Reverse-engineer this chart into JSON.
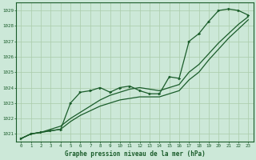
{
  "title": "Graphe pression niveau de la mer (hPa)",
  "bg_color": "#cce8d8",
  "grid_color": "#aaccaa",
  "line_color": "#1a5c2a",
  "xlim": [
    -0.5,
    23.5
  ],
  "ylim": [
    1020.5,
    1029.5
  ],
  "yticks": [
    1021,
    1022,
    1023,
    1024,
    1025,
    1026,
    1027,
    1028,
    1029
  ],
  "xticks": [
    0,
    1,
    2,
    3,
    4,
    5,
    6,
    7,
    8,
    9,
    10,
    11,
    12,
    13,
    14,
    15,
    16,
    17,
    18,
    19,
    20,
    21,
    22,
    23
  ],
  "x": [
    0,
    1,
    2,
    3,
    4,
    5,
    6,
    7,
    8,
    9,
    10,
    11,
    12,
    13,
    14,
    15,
    16,
    17,
    18,
    19,
    20,
    21,
    22,
    23
  ],
  "pressure_main": [
    1020.7,
    1021.0,
    1021.1,
    1021.2,
    1021.3,
    1023.0,
    1023.7,
    1023.8,
    1024.0,
    1023.7,
    1024.0,
    1024.1,
    1023.8,
    1023.6,
    1023.6,
    1024.7,
    1024.6,
    1027.0,
    1027.5,
    1028.3,
    1029.0,
    1029.1,
    1029.0,
    1028.7
  ],
  "pressure_low": [
    1020.7,
    1021.0,
    1021.1,
    1021.2,
    1021.3,
    1021.8,
    1022.2,
    1022.5,
    1022.8,
    1023.0,
    1023.2,
    1023.3,
    1023.4,
    1023.4,
    1023.4,
    1023.6,
    1023.8,
    1024.5,
    1025.0,
    1025.8,
    1026.5,
    1027.2,
    1027.8,
    1028.4
  ],
  "pressure_high": [
    1020.7,
    1021.0,
    1021.1,
    1021.3,
    1021.5,
    1022.0,
    1022.4,
    1022.8,
    1023.2,
    1023.5,
    1023.7,
    1023.9,
    1024.0,
    1023.9,
    1023.8,
    1024.0,
    1024.2,
    1025.0,
    1025.5,
    1026.2,
    1026.9,
    1027.5,
    1028.1,
    1028.6
  ]
}
